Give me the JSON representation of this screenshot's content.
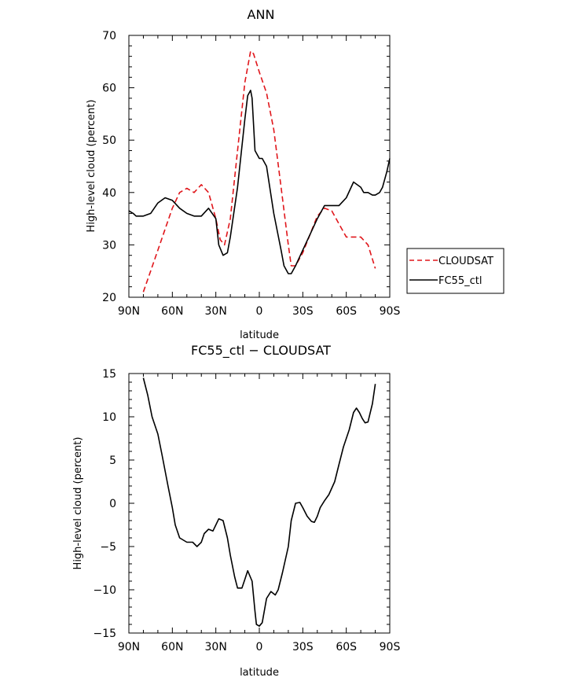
{
  "chart_data": [
    {
      "type": "line",
      "title": "ANN",
      "xlabel": "latitude",
      "ylabel": "High-level cloud (percent)",
      "xlim": [
        90,
        -90
      ],
      "ylim": [
        20,
        70
      ],
      "xticks": [
        90,
        60,
        30,
        0,
        -30,
        -60,
        -90
      ],
      "xticklabels": [
        "90N",
        "60N",
        "30N",
        "0",
        "30S",
        "60S",
        "90S"
      ],
      "yticks": [
        20,
        30,
        40,
        50,
        60,
        70
      ],
      "yticklabels": [
        "20",
        "30",
        "40",
        "50",
        "60",
        "70"
      ],
      "legend_position": "right",
      "series": [
        {
          "name": "CLOUDSAT",
          "color": "#e0161b",
          "dash": "dashed",
          "x": [
            80,
            75,
            70,
            65,
            60,
            55,
            50,
            45,
            40,
            35,
            30,
            27,
            24,
            20,
            15,
            10,
            6,
            4,
            0,
            -5,
            -10,
            -15,
            -20,
            -22,
            -25,
            -30,
            -35,
            -40,
            -45,
            -50,
            -55,
            -60,
            -65,
            -70,
            -75,
            -80
          ],
          "y": [
            21,
            25,
            29,
            33,
            37,
            40,
            40.8,
            40,
            41.5,
            40,
            35,
            31,
            30,
            35,
            48,
            61,
            67,
            66.5,
            63,
            59,
            52,
            41,
            30,
            26,
            26,
            28.5,
            32,
            35.5,
            37,
            36.5,
            34,
            31.5,
            31.5,
            31.5,
            30,
            25.5
          ]
        },
        {
          "name": "FC55_ctl",
          "color": "#000000",
          "dash": "solid",
          "x": [
            90,
            87,
            85,
            80,
            75,
            70,
            65,
            60,
            55,
            50,
            45,
            40,
            35,
            30,
            28,
            25,
            22,
            20,
            15,
            10,
            8,
            6,
            5,
            3,
            0,
            -2,
            -5,
            -10,
            -15,
            -17,
            -20,
            -22,
            -25,
            -30,
            -35,
            -40,
            -45,
            -50,
            -55,
            -60,
            -65,
            -70,
            -72,
            -75,
            -78,
            -80,
            -83,
            -85,
            -88,
            -90
          ],
          "y": [
            36.5,
            36,
            35.5,
            35.5,
            36,
            38,
            39,
            38.5,
            37,
            36,
            35.5,
            35.5,
            37,
            35,
            30,
            28,
            28.5,
            31.5,
            41,
            54,
            58.5,
            59.5,
            58,
            48,
            46.5,
            46.5,
            45,
            36,
            29,
            26,
            24.5,
            24.5,
            26,
            29,
            32,
            35,
            37.5,
            37.5,
            37.5,
            39,
            42,
            41,
            40,
            40,
            39.5,
            39.5,
            40,
            41,
            44,
            46.5
          ]
        }
      ]
    },
    {
      "type": "line",
      "title": "FC55_ctl − CLOUDSAT",
      "xlabel": "latitude",
      "ylabel": "High-level cloud (percent)",
      "xlim": [
        90,
        -90
      ],
      "ylim": [
        -15,
        15
      ],
      "xticks": [
        90,
        60,
        30,
        0,
        -30,
        -60,
        -90
      ],
      "xticklabels": [
        "90N",
        "60N",
        "30N",
        "0",
        "30S",
        "60S",
        "90S"
      ],
      "yticks": [
        -15,
        -10,
        -5,
        0,
        5,
        10,
        15
      ],
      "yticklabels": [
        "−15",
        "−10",
        "−5",
        "0",
        "5",
        "10",
        "15"
      ],
      "series": [
        {
          "color": "#000000",
          "dash": "solid",
          "x": [
            80,
            77,
            74,
            70,
            67,
            63,
            60,
            58,
            55,
            50,
            46,
            43,
            40,
            38,
            35,
            32,
            30,
            28,
            25,
            22,
            20,
            17,
            15,
            12,
            10,
            8,
            5,
            3,
            2,
            0,
            -2,
            -5,
            -8,
            -11,
            -13,
            -16,
            -20,
            -22,
            -25,
            -28,
            -30,
            -33,
            -36,
            -38,
            -40,
            -42,
            -45,
            -48,
            -52,
            -55,
            -58,
            -62,
            -65,
            -67,
            -69,
            -71,
            -73,
            -75,
            -78,
            -80
          ],
          "y": [
            14.5,
            12.5,
            10,
            8,
            5.5,
            2,
            -0.5,
            -2.5,
            -4,
            -4.5,
            -4.5,
            -5,
            -4.5,
            -3.5,
            -3,
            -3.2,
            -2.5,
            -1.8,
            -2,
            -4,
            -6,
            -8.5,
            -9.8,
            -9.8,
            -8.8,
            -7.8,
            -9,
            -12.5,
            -14,
            -14.2,
            -13.8,
            -11,
            -10.2,
            -10.6,
            -10,
            -8,
            -5,
            -2,
            0,
            0.1,
            -0.5,
            -1.5,
            -2.1,
            -2.2,
            -1.5,
            -0.5,
            0.3,
            1,
            2.5,
            4.5,
            6.5,
            8.5,
            10.5,
            11,
            10.5,
            9.8,
            9.3,
            9.4,
            11.5,
            13.8
          ]
        }
      ]
    }
  ]
}
